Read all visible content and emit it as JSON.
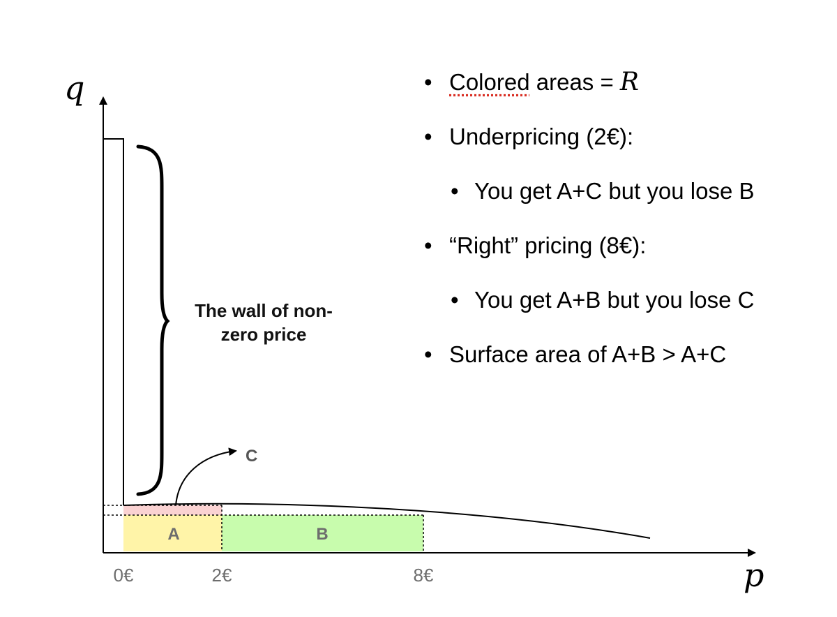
{
  "axes": {
    "y_letter": "q",
    "x_letter": "p"
  },
  "ticks": [
    "0€",
    "2€",
    "8€"
  ],
  "areas": {
    "a_label": "A",
    "b_label": "B",
    "c_label": "C"
  },
  "wall_label_lines": [
    "The wall of non-",
    "zero price"
  ],
  "colors": {
    "area_a": "#fff4a8",
    "area_b": "#c8fcad",
    "area_c": "#fad2d2",
    "axis": "#000000",
    "tick_text": "#6d6d6d"
  },
  "bullets": [
    {
      "marker": "•",
      "prefix": "Colored",
      "rest": " areas = ",
      "math": "R"
    },
    {
      "marker": "•",
      "text": "Underpricing (2€):"
    },
    {
      "marker": "•",
      "text": "You get A+C but you lose B"
    },
    {
      "marker": "•",
      "text": "“Right” pricing (8€):"
    },
    {
      "marker": "•",
      "text": "You get A+B but you lose C"
    },
    {
      "marker": "•",
      "text": "Surface area of A+B > A+C"
    }
  ]
}
